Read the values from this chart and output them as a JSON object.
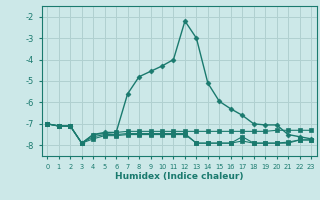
{
  "xlabel": "Humidex (Indice chaleur)",
  "background_color": "#cce8e8",
  "grid_color": "#b0d0d0",
  "line_color": "#1a7a6e",
  "x": [
    0,
    1,
    2,
    3,
    4,
    5,
    6,
    7,
    8,
    9,
    10,
    11,
    12,
    13,
    14,
    15,
    16,
    17,
    18,
    19,
    20,
    21,
    22,
    23
  ],
  "series1": [
    -7.0,
    -7.1,
    -7.1,
    -7.9,
    -7.5,
    -7.45,
    -7.4,
    -7.35,
    -7.35,
    -7.35,
    -7.35,
    -7.35,
    -7.35,
    -7.35,
    -7.35,
    -7.35,
    -7.35,
    -7.35,
    -7.35,
    -7.35,
    -7.3,
    -7.3,
    -7.3,
    -7.3
  ],
  "series2": [
    -7.0,
    -7.1,
    -7.1,
    -7.9,
    -7.6,
    -7.5,
    -7.5,
    -7.45,
    -7.45,
    -7.45,
    -7.45,
    -7.45,
    -7.45,
    -7.9,
    -7.9,
    -7.9,
    -7.9,
    -7.6,
    -7.9,
    -7.9,
    -7.9,
    -7.9,
    -7.75,
    -7.75
  ],
  "series3": [
    -7.0,
    -7.1,
    -7.1,
    -7.9,
    -7.7,
    -7.55,
    -7.55,
    -7.5,
    -7.5,
    -7.5,
    -7.5,
    -7.5,
    -7.5,
    -7.9,
    -7.9,
    -7.9,
    -7.9,
    -7.8,
    -7.9,
    -7.9,
    -7.9,
    -7.85,
    -7.75,
    -7.75
  ],
  "series4": [
    -7.0,
    -7.1,
    -7.1,
    -7.9,
    -7.5,
    -7.4,
    -7.4,
    -5.6,
    -4.8,
    -4.55,
    -4.3,
    -4.0,
    -2.2,
    -3.0,
    -5.1,
    -5.95,
    -6.3,
    -6.6,
    -7.0,
    -7.05,
    -7.05,
    -7.5,
    -7.6,
    -7.7
  ],
  "ylim": [
    -8.5,
    -1.5
  ],
  "xlim": [
    -0.5,
    23.5
  ],
  "yticks": [
    -8,
    -7,
    -6,
    -5,
    -4,
    -3,
    -2
  ],
  "xticks": [
    0,
    1,
    2,
    3,
    4,
    5,
    6,
    7,
    8,
    9,
    10,
    11,
    12,
    13,
    14,
    15,
    16,
    17,
    18,
    19,
    20,
    21,
    22,
    23
  ]
}
